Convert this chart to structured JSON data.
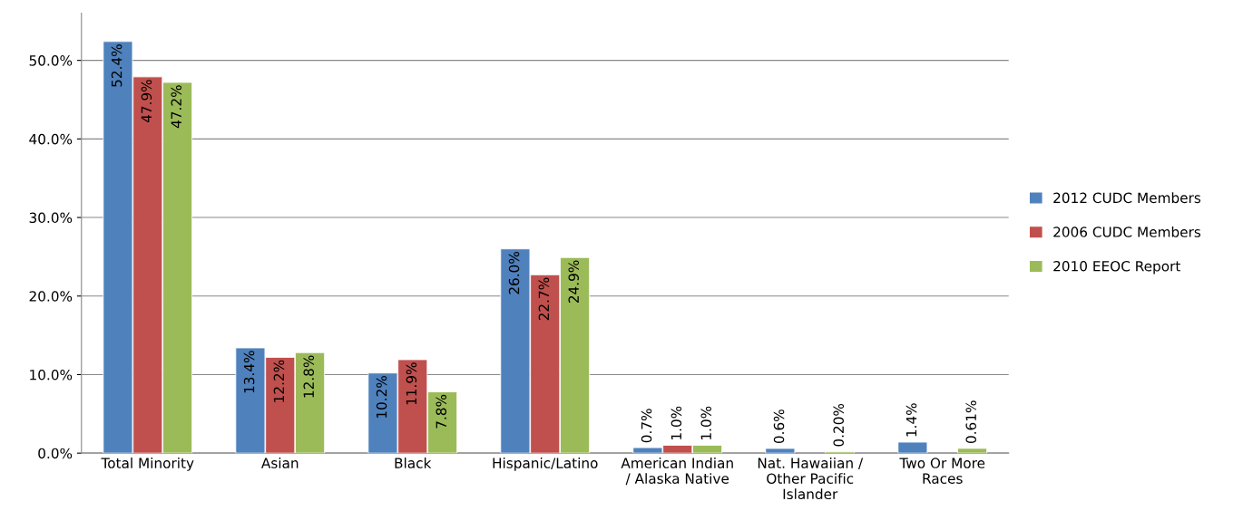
{
  "chart_data": {
    "type": "bar",
    "categories": [
      "Total Minority",
      "Asian",
      "Black",
      "Hispanic/Latino",
      "American Indian\n/ Alaska Native",
      "Nat. Hawaiian /\nOther Pacific\nIslander",
      "Two Or More\nRaces"
    ],
    "series": [
      {
        "name": "2012 CUDC Members",
        "color": "#4f81bd",
        "values": [
          52.4,
          13.4,
          10.2,
          26.0,
          0.7,
          0.6,
          1.4
        ],
        "value_labels": [
          "52.4%",
          "13.4%",
          "10.2%",
          "26.0%",
          "0.7%",
          "0.6%",
          "1.4%"
        ]
      },
      {
        "name": "2006 CUDC Members",
        "color": "#c0504d",
        "values": [
          47.9,
          12.2,
          11.9,
          22.7,
          1.0,
          null,
          null
        ],
        "value_labels": [
          "47.9%",
          "12.2%",
          "11.9%",
          "22.7%",
          "1.0%",
          null,
          null
        ]
      },
      {
        "name": "2010 EEOC Report",
        "color": "#9bbb59",
        "values": [
          47.2,
          12.8,
          7.8,
          24.9,
          1.0,
          0.2,
          0.61
        ],
        "value_labels": [
          "47.2%",
          "12.8%",
          "7.8%",
          "24.9%",
          "1.0%",
          "0.20%",
          "0.61%"
        ]
      }
    ],
    "ylim": [
      0,
      56
    ],
    "yticks": [
      {
        "value": 0,
        "label": "0.0%"
      },
      {
        "value": 10,
        "label": "10.0%"
      },
      {
        "value": 20,
        "label": "20.0%"
      },
      {
        "value": 30,
        "label": "30.0%"
      },
      {
        "value": 40,
        "label": "40.0%"
      },
      {
        "value": 50,
        "label": "50.0%"
      }
    ],
    "grid": "y",
    "legend": "right"
  }
}
